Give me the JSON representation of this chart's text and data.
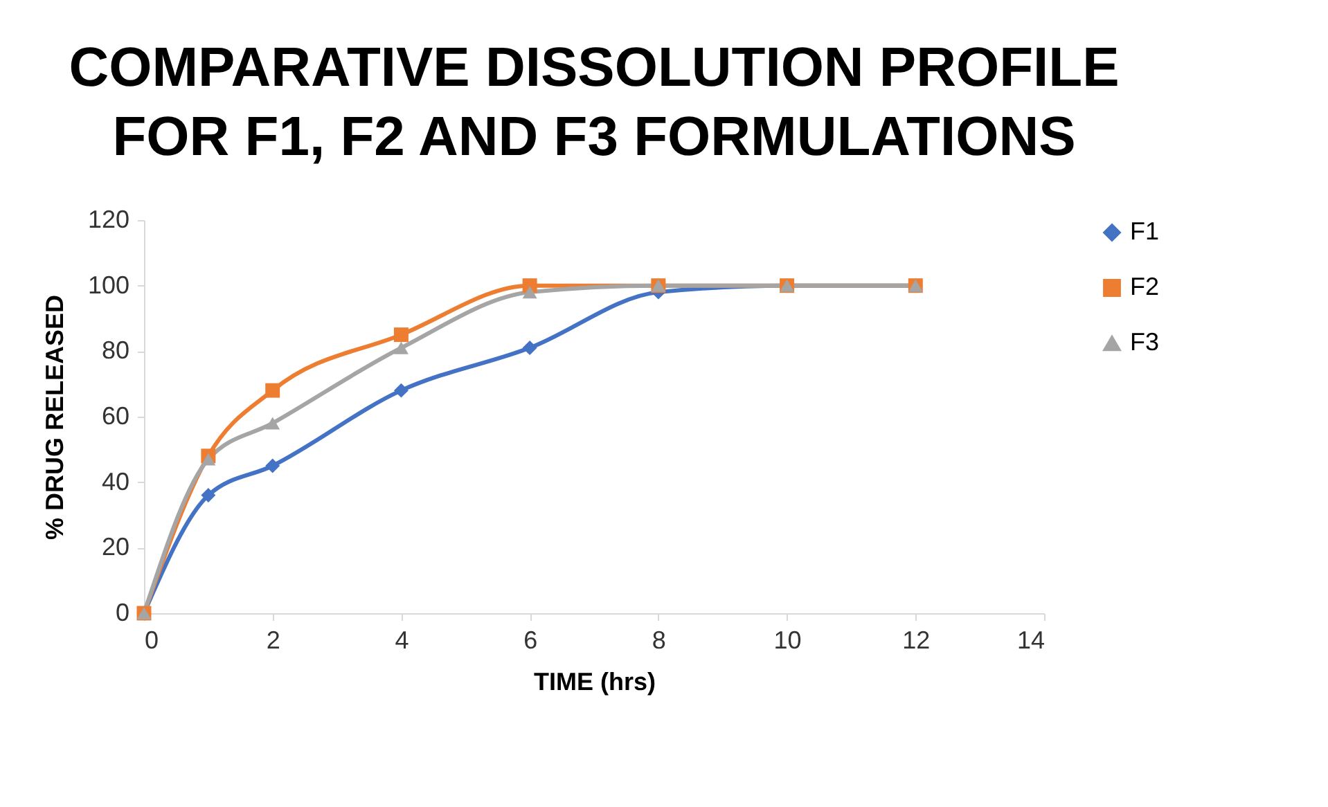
{
  "chart_data": {
    "type": "line",
    "title": "COMPARATIVE DISSOLUTION PROFILE FOR F1, F2 AND F3 FORMULATIONS",
    "xlabel": "TIME (hrs)",
    "ylabel": "% DRUG RELEASED",
    "x": [
      0,
      1,
      2,
      4,
      6,
      8,
      10,
      12
    ],
    "series": [
      {
        "name": "F1",
        "color": "#4472c4",
        "marker": "diamond",
        "values": [
          0,
          36,
          45,
          68,
          81,
          98,
          100,
          100
        ]
      },
      {
        "name": "F2",
        "color": "#ed7d31",
        "marker": "square",
        "values": [
          0,
          48,
          68,
          85,
          100,
          100,
          100,
          100
        ]
      },
      {
        "name": "F3",
        "color": "#a5a5a5",
        "marker": "triangle",
        "values": [
          0,
          47,
          58,
          81,
          98,
          100,
          100,
          100
        ]
      }
    ],
    "xlim": [
      0,
      14
    ],
    "xticks": [
      0,
      2,
      4,
      6,
      8,
      10,
      12,
      14
    ],
    "ylim": [
      0,
      120
    ],
    "yticks": [
      0,
      20,
      40,
      60,
      80,
      100,
      120
    ],
    "grid": false,
    "legend": "right",
    "line_style": "solid"
  }
}
